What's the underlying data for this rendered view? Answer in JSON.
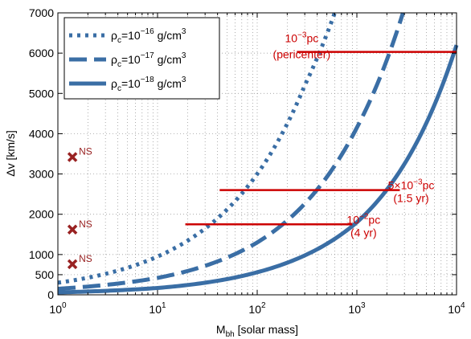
{
  "chart_data": {
    "type": "line",
    "xscale": "log",
    "xlim": [
      1,
      10000
    ],
    "ylim": [
      0,
      7000
    ],
    "xlabel_main": "M",
    "xlabel_sub": "bh",
    "xlabel_rest": " [solar mass]",
    "ylabel": "Δv [km/s]",
    "x_ticks": [
      {
        "value": 1,
        "base": "10",
        "exp": "0"
      },
      {
        "value": 10,
        "base": "10",
        "exp": "1"
      },
      {
        "value": 100,
        "base": "10",
        "exp": "2"
      },
      {
        "value": 1000,
        "base": "10",
        "exp": "3"
      },
      {
        "value": 10000,
        "base": "10",
        "exp": "4"
      }
    ],
    "y_ticks": [
      0,
      500,
      1000,
      2000,
      3000,
      4000,
      5000,
      6000,
      7000
    ],
    "y_tick_labels": [
      "0",
      "500",
      "1000",
      "2000",
      "3000",
      "4000",
      "5000",
      "6000",
      "7000"
    ],
    "grid": "dotted",
    "legend_position": "top-left",
    "series_color": "#3a6ea5",
    "series": [
      {
        "name_base": "ρ",
        "name_sub": "c",
        "name_mid": "=10",
        "name_exp": "−16",
        "name_unit": " g/cm",
        "name_unit_exp": "3",
        "style": "dotted",
        "x": [
          1,
          10,
          100,
          300,
          600
        ],
        "y": [
          300,
          950,
          3000,
          5200,
          7000
        ]
      },
      {
        "name_base": "ρ",
        "name_sub": "c",
        "name_mid": "=10",
        "name_exp": "−17",
        "name_unit": " g/cm",
        "name_unit_exp": "3",
        "style": "dashed",
        "x": [
          1,
          10,
          100,
          1000,
          2900
        ],
        "y": [
          150,
          420,
          1300,
          4150,
          7000
        ]
      },
      {
        "name_base": "ρ",
        "name_sub": "c",
        "name_mid": "=10",
        "name_exp": "−18",
        "name_unit": " g/cm",
        "name_unit_exp": "3",
        "style": "solid",
        "x": [
          1,
          10,
          100,
          1000,
          10000
        ],
        "y": [
          60,
          170,
          560,
          1800,
          6200
        ]
      }
    ],
    "hlines": {
      "color": "#cc0000",
      "items": [
        {
          "y": 6030,
          "x1": 250,
          "x2": 10000,
          "label_l1_base": "10",
          "label_l1_exp": "−3",
          "label_l1_rest": "pc",
          "label_l2": "(pericenter)",
          "label_pos": "left"
        },
        {
          "y": 2600,
          "x1": 42,
          "x2": 2700,
          "label_l1_base": "5×10",
          "label_l1_exp": "−3",
          "label_l1_rest": "pc",
          "label_l2": "(1.5 yr)",
          "label_pos": "right"
        },
        {
          "y": 1750,
          "x1": 19,
          "x2": 900,
          "label_l1_base": "10",
          "label_l1_exp": "−2",
          "label_l1_rest": "pc",
          "label_l2": "(4 yr)",
          "label_pos": "right"
        }
      ]
    },
    "ns_points": {
      "color": "#992222",
      "label": "NS",
      "points": [
        {
          "x": 1.4,
          "y": 3420
        },
        {
          "x": 1.4,
          "y": 1620
        },
        {
          "x": 1.4,
          "y": 760
        }
      ]
    }
  }
}
